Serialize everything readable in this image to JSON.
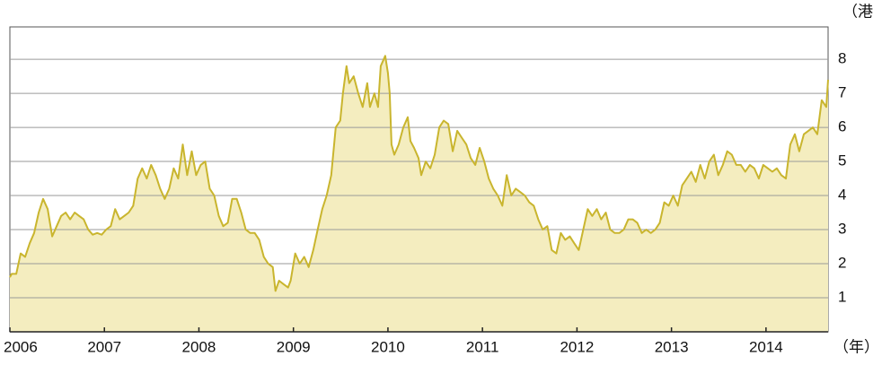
{
  "chart_data": {
    "type": "area",
    "ylabel": "（港元）",
    "xlabel": "（年）",
    "xlim": [
      2006,
      2014.657
    ],
    "xticks": [
      2006,
      2007,
      2008,
      2009,
      2010,
      2011,
      2012,
      2013,
      2014
    ],
    "ylim": [
      0,
      8.95
    ],
    "yticks": [
      1,
      2,
      3,
      4,
      5,
      6,
      7,
      8
    ],
    "grid": true,
    "series": [
      {
        "color": "#c9b52e",
        "fill": "#f4edbf",
        "x": [
          2006.0,
          2006.019,
          2006.067,
          2006.114,
          2006.162,
          2006.21,
          2006.257,
          2006.305,
          2006.352,
          2006.4,
          2006.448,
          2006.495,
          2006.543,
          2006.59,
          2006.638,
          2006.686,
          2006.733,
          2006.781,
          2006.829,
          2006.876,
          2006.924,
          2006.971,
          2007.019,
          2007.067,
          2007.114,
          2007.162,
          2007.21,
          2007.257,
          2007.305,
          2007.352,
          2007.4,
          2007.448,
          2007.495,
          2007.543,
          2007.59,
          2007.638,
          2007.686,
          2007.733,
          2007.781,
          2007.829,
          2007.876,
          2007.924,
          2007.971,
          2008.019,
          2008.067,
          2008.114,
          2008.162,
          2008.21,
          2008.257,
          2008.305,
          2008.352,
          2008.4,
          2008.448,
          2008.495,
          2008.543,
          2008.59,
          2008.638,
          2008.686,
          2008.733,
          2008.781,
          2008.81,
          2008.848,
          2008.895,
          2008.943,
          2008.971,
          2009.019,
          2009.067,
          2009.114,
          2009.162,
          2009.21,
          2009.257,
          2009.305,
          2009.352,
          2009.4,
          2009.448,
          2009.495,
          2009.524,
          2009.562,
          2009.59,
          2009.638,
          2009.686,
          2009.733,
          2009.781,
          2009.81,
          2009.857,
          2009.895,
          2009.924,
          2009.971,
          2010.0,
          2010.019,
          2010.038,
          2010.067,
          2010.114,
          2010.162,
          2010.21,
          2010.238,
          2010.276,
          2010.324,
          2010.352,
          2010.4,
          2010.448,
          2010.495,
          2010.543,
          2010.59,
          2010.638,
          2010.686,
          2010.733,
          2010.781,
          2010.829,
          2010.876,
          2010.924,
          2010.971,
          2011.019,
          2011.067,
          2011.114,
          2011.162,
          2011.21,
          2011.257,
          2011.305,
          2011.352,
          2011.4,
          2011.448,
          2011.495,
          2011.543,
          2011.59,
          2011.638,
          2011.686,
          2011.733,
          2011.781,
          2011.829,
          2011.876,
          2011.924,
          2011.971,
          2012.019,
          2012.067,
          2012.114,
          2012.162,
          2012.21,
          2012.257,
          2012.305,
          2012.352,
          2012.4,
          2012.448,
          2012.495,
          2012.543,
          2012.59,
          2012.638,
          2012.686,
          2012.733,
          2012.781,
          2012.829,
          2012.876,
          2012.924,
          2012.971,
          2013.019,
          2013.067,
          2013.114,
          2013.162,
          2013.21,
          2013.257,
          2013.305,
          2013.352,
          2013.4,
          2013.448,
          2013.495,
          2013.543,
          2013.59,
          2013.638,
          2013.686,
          2013.733,
          2013.781,
          2013.829,
          2013.876,
          2013.924,
          2013.971,
          2014.019,
          2014.067,
          2014.114,
          2014.162,
          2014.21,
          2014.257,
          2014.305,
          2014.352,
          2014.4,
          2014.448,
          2014.495,
          2014.543,
          2014.59,
          2014.638,
          2014.657
        ],
        "values": [
          1.6,
          1.7,
          1.7,
          2.3,
          2.2,
          2.6,
          2.9,
          3.5,
          3.9,
          3.6,
          2.8,
          3.1,
          3.4,
          3.5,
          3.3,
          3.5,
          3.4,
          3.3,
          3.0,
          2.85,
          2.9,
          2.85,
          3.0,
          3.1,
          3.6,
          3.3,
          3.4,
          3.5,
          3.7,
          4.5,
          4.8,
          4.5,
          4.9,
          4.6,
          4.2,
          3.9,
          4.2,
          4.8,
          4.5,
          5.5,
          4.6,
          5.3,
          4.6,
          4.9,
          5.0,
          4.2,
          4.0,
          3.4,
          3.1,
          3.2,
          3.9,
          3.9,
          3.5,
          3.0,
          2.9,
          2.9,
          2.7,
          2.2,
          2.0,
          1.9,
          1.2,
          1.5,
          1.4,
          1.3,
          1.5,
          2.3,
          2.0,
          2.2,
          1.9,
          2.4,
          3.0,
          3.6,
          4.0,
          4.6,
          6.0,
          6.2,
          7.0,
          7.8,
          7.3,
          7.5,
          7.0,
          6.6,
          7.3,
          6.6,
          7.0,
          6.6,
          7.8,
          8.1,
          7.6,
          7.0,
          5.5,
          5.2,
          5.5,
          6.0,
          6.3,
          5.6,
          5.4,
          5.1,
          4.6,
          5.0,
          4.8,
          5.2,
          6.0,
          6.2,
          6.1,
          5.3,
          5.9,
          5.7,
          5.5,
          5.1,
          4.9,
          5.4,
          5.0,
          4.5,
          4.2,
          4.0,
          3.7,
          4.6,
          4.0,
          4.2,
          4.1,
          4.0,
          3.8,
          3.7,
          3.3,
          3.0,
          3.1,
          2.4,
          2.3,
          2.9,
          2.7,
          2.8,
          2.6,
          2.4,
          3.0,
          3.6,
          3.4,
          3.6,
          3.3,
          3.5,
          3.0,
          2.9,
          2.9,
          3.0,
          3.3,
          3.3,
          3.2,
          2.9,
          3.0,
          2.9,
          3.0,
          3.2,
          3.8,
          3.7,
          4.0,
          3.7,
          4.3,
          4.5,
          4.7,
          4.4,
          4.9,
          4.5,
          5.0,
          5.2,
          4.6,
          4.9,
          5.3,
          5.2,
          4.9,
          4.9,
          4.7,
          4.9,
          4.8,
          4.5,
          4.9,
          4.8,
          4.7,
          4.8,
          4.6,
          4.5,
          5.5,
          5.8,
          5.3,
          5.8,
          5.9,
          6.0,
          5.8,
          6.8,
          6.6,
          7.4
        ]
      }
    ]
  }
}
